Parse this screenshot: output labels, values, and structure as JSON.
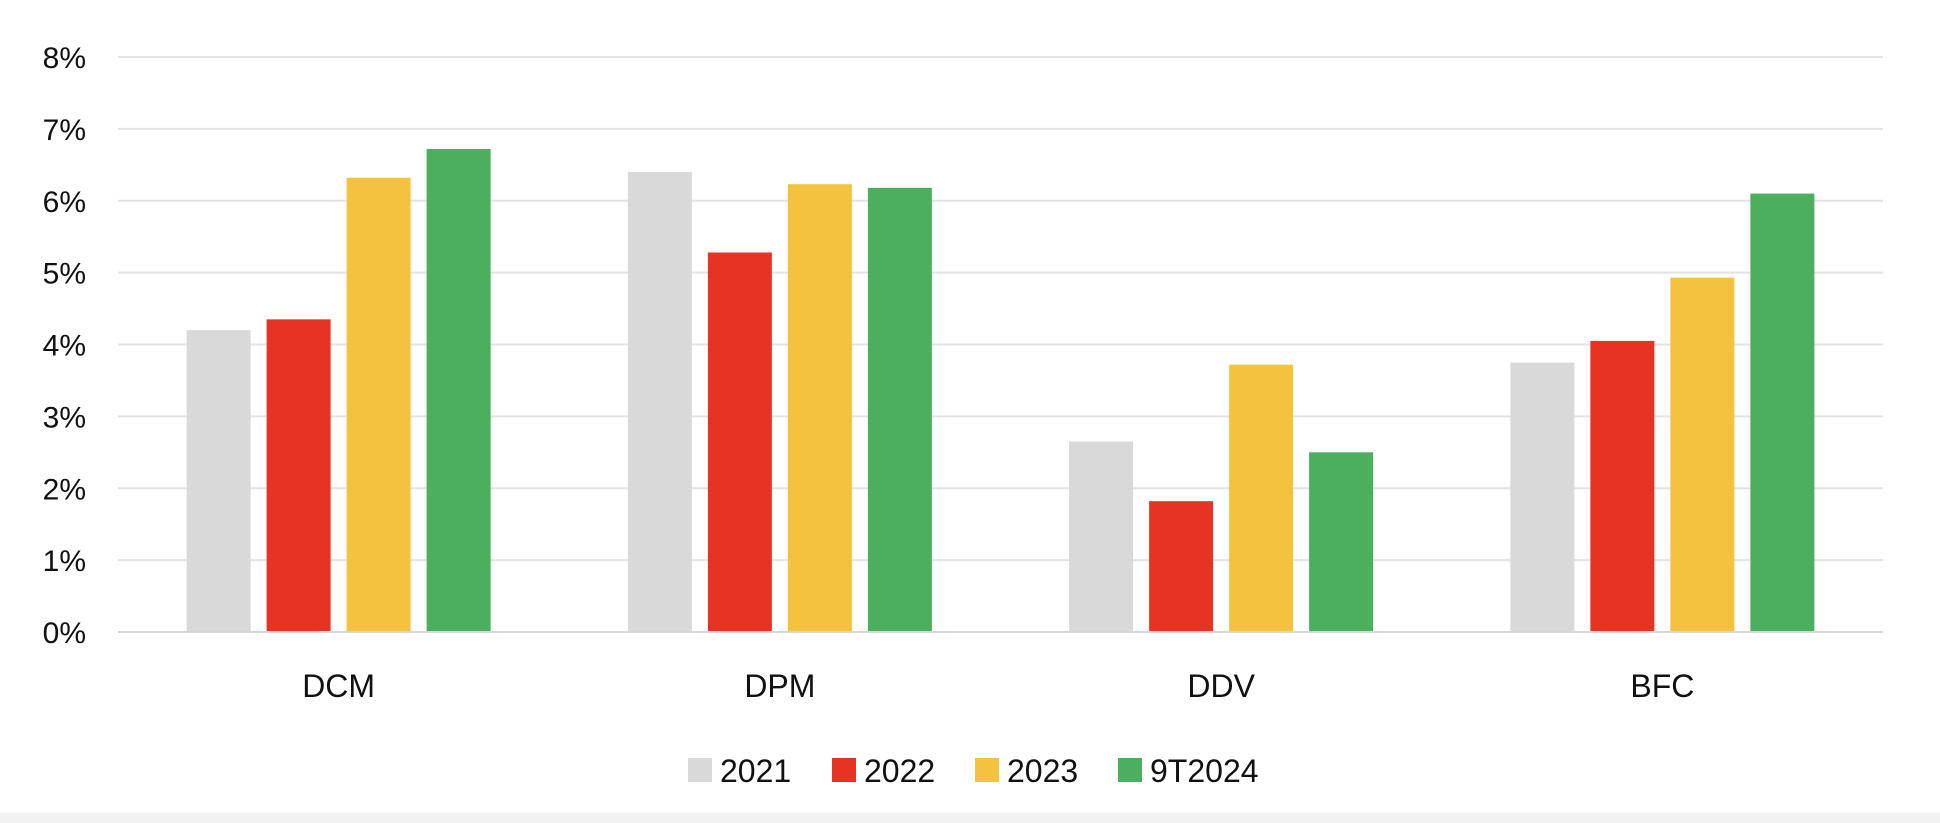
{
  "chart_data": {
    "type": "bar",
    "categories": [
      "DCM",
      "DPM",
      "DDV",
      "BFC"
    ],
    "series": [
      {
        "name": "2021",
        "color": "#d9d9d9",
        "values": [
          4.2,
          6.4,
          2.65,
          3.75
        ]
      },
      {
        "name": "2022",
        "color": "#e63323",
        "values": [
          4.35,
          5.28,
          1.82,
          4.05
        ]
      },
      {
        "name": "2023",
        "color": "#f5c240",
        "values": [
          6.32,
          6.23,
          3.72,
          4.93
        ]
      },
      {
        "name": "9T2024",
        "color": "#4caf5e",
        "values": [
          6.72,
          6.18,
          2.5,
          6.1
        ]
      }
    ],
    "ylim": [
      0,
      8
    ],
    "yticks": [
      "0%",
      "1%",
      "2%",
      "3%",
      "4%",
      "5%",
      "6%",
      "7%",
      "8%"
    ],
    "ytick_values": [
      0,
      1,
      2,
      3,
      4,
      5,
      6,
      7,
      8
    ],
    "grid": true,
    "legend_position": "bottom-center",
    "title": "",
    "xlabel": "",
    "ylabel": ""
  }
}
